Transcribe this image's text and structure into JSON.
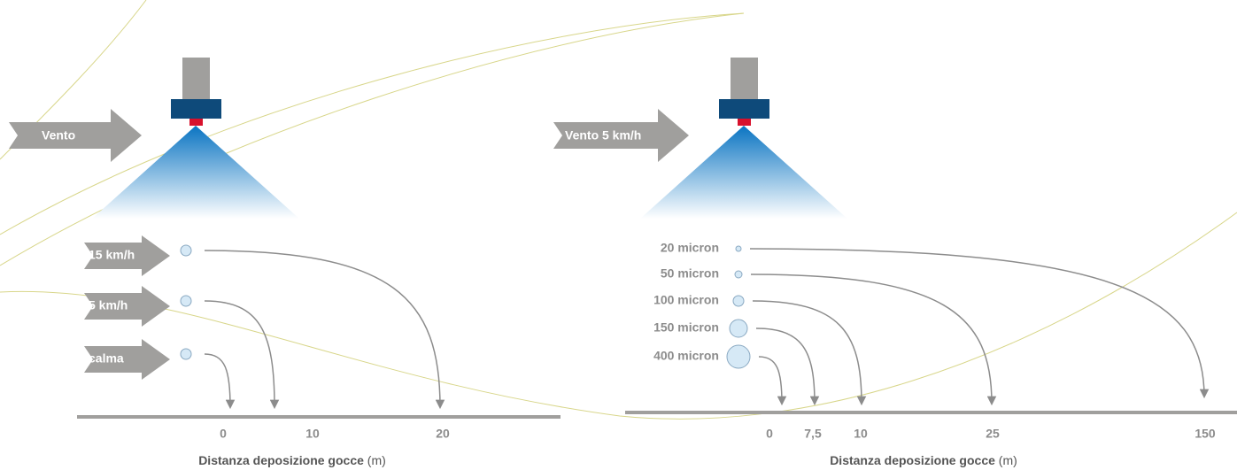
{
  "left": {
    "wind": "Vento",
    "speeds": [
      "15 km/h",
      "5 km/h",
      "calma"
    ],
    "ticks": [
      "0",
      "10",
      "20"
    ],
    "axis_title": "Distanza deposizione gocce",
    "axis_unit": "(m)"
  },
  "right": {
    "wind": "Vento 5 km/h",
    "droplets": [
      "20 micron",
      "50 micron",
      "100 micron",
      "150 micron",
      "400 micron"
    ],
    "ticks": [
      "0",
      "7,5",
      "10",
      "25",
      "150"
    ],
    "axis_title": "Distanza deposizione gocce",
    "axis_unit": "(m)"
  }
}
